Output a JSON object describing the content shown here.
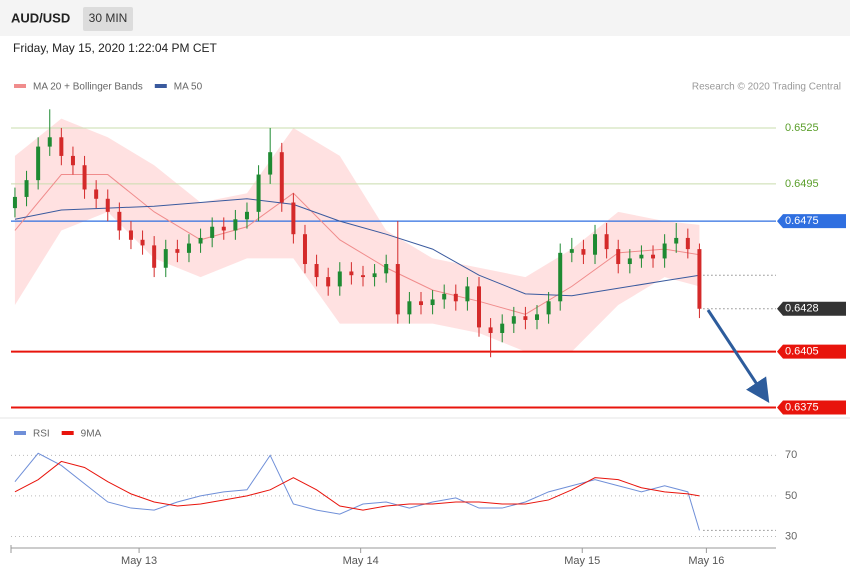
{
  "header": {
    "symbol": "AUD/USD",
    "interval": "30 MIN",
    "timestamp": "Friday, May 15, 2020 1:22:04 PM CET",
    "credit": "Research © 2020 Trading Central"
  },
  "chart_data": [
    {
      "type": "candlestick",
      "xlim": [
        -0.34,
        65.6
      ],
      "ylim": [
        0.6371,
        0.654
      ],
      "up_color": "#1e8a32",
      "down_color": "#d42a2a",
      "candles": {
        "open": [
          0.6482,
          0.6488,
          0.6497,
          0.6515,
          0.652,
          0.651,
          0.6505,
          0.6492,
          0.6487,
          0.648,
          0.647,
          0.6465,
          0.6462,
          0.645,
          0.646,
          0.6458,
          0.6463,
          0.6466,
          0.6472,
          0.647,
          0.6476,
          0.648,
          0.65,
          0.6512,
          0.6485,
          0.6468,
          0.6452,
          0.6445,
          0.644,
          0.6448,
          0.6446,
          0.6445,
          0.6447,
          0.6452,
          0.6425,
          0.6432,
          0.643,
          0.6433,
          0.6436,
          0.6432,
          0.644,
          0.6418,
          0.6415,
          0.642,
          0.6424,
          0.6422,
          0.6425,
          0.6432,
          0.6458,
          0.646,
          0.6457,
          0.6468,
          0.646,
          0.6452,
          0.6455,
          0.6457,
          0.6455,
          0.6463,
          0.6466,
          0.646
        ],
        "high": [
          0.6493,
          0.6502,
          0.652,
          0.6535,
          0.6525,
          0.6515,
          0.651,
          0.6497,
          0.6492,
          0.6485,
          0.6475,
          0.647,
          0.6467,
          0.6465,
          0.6465,
          0.6468,
          0.6471,
          0.6477,
          0.6477,
          0.6481,
          0.6485,
          0.6505,
          0.6525,
          0.6517,
          0.649,
          0.6473,
          0.6457,
          0.645,
          0.6453,
          0.6453,
          0.6451,
          0.6452,
          0.6457,
          0.6475,
          0.6437,
          0.6437,
          0.6438,
          0.6441,
          0.6441,
          0.6445,
          0.6445,
          0.6423,
          0.6425,
          0.6429,
          0.6429,
          0.643,
          0.6437,
          0.6463,
          0.6466,
          0.6465,
          0.6473,
          0.6474,
          0.6465,
          0.646,
          0.6462,
          0.6462,
          0.6468,
          0.6474,
          0.6471,
          0.6463
        ],
        "low": [
          0.6477,
          0.6483,
          0.6492,
          0.651,
          0.6505,
          0.65,
          0.6487,
          0.6482,
          0.6475,
          0.6465,
          0.646,
          0.6457,
          0.6445,
          0.6445,
          0.6453,
          0.6453,
          0.6458,
          0.6461,
          0.6465,
          0.6465,
          0.6471,
          0.6475,
          0.6495,
          0.648,
          0.6463,
          0.6447,
          0.644,
          0.6435,
          0.6435,
          0.6441,
          0.644,
          0.644,
          0.6442,
          0.642,
          0.642,
          0.6425,
          0.6425,
          0.6428,
          0.6427,
          0.6427,
          0.6413,
          0.6402,
          0.641,
          0.6415,
          0.6417,
          0.6417,
          0.642,
          0.6427,
          0.6453,
          0.6452,
          0.6452,
          0.6455,
          0.6447,
          0.6447,
          0.645,
          0.645,
          0.645,
          0.6458,
          0.6455,
          0.6423
        ],
        "close": [
          0.6488,
          0.6497,
          0.6515,
          0.652,
          0.651,
          0.6505,
          0.6492,
          0.6487,
          0.648,
          0.647,
          0.6465,
          0.6462,
          0.645,
          0.646,
          0.6458,
          0.6463,
          0.6466,
          0.6472,
          0.647,
          0.6476,
          0.648,
          0.65,
          0.6512,
          0.6485,
          0.6468,
          0.6452,
          0.6445,
          0.644,
          0.6448,
          0.6446,
          0.6445,
          0.6447,
          0.6452,
          0.6425,
          0.6432,
          0.643,
          0.6433,
          0.6436,
          0.6432,
          0.644,
          0.6418,
          0.6415,
          0.642,
          0.6424,
          0.6422,
          0.6425,
          0.6432,
          0.6458,
          0.646,
          0.6457,
          0.6468,
          0.646,
          0.6452,
          0.6455,
          0.6457,
          0.6455,
          0.6463,
          0.6466,
          0.646,
          0.6428
        ]
      },
      "indicator_x": [
        0,
        4,
        8,
        12,
        16,
        20,
        24,
        28,
        32,
        36,
        40,
        44,
        48,
        52,
        56,
        59
      ],
      "bands": {
        "color": "#ffdcdc",
        "upper": [
          0.651,
          0.653,
          0.652,
          0.6505,
          0.6485,
          0.649,
          0.6525,
          0.651,
          0.647,
          0.6455,
          0.645,
          0.6445,
          0.646,
          0.648,
          0.6475,
          0.6473
        ],
        "lower": [
          0.643,
          0.647,
          0.648,
          0.6455,
          0.6445,
          0.6455,
          0.6455,
          0.642,
          0.642,
          0.642,
          0.6415,
          0.6405,
          0.6405,
          0.643,
          0.6445,
          0.644
        ]
      },
      "series": [
        {
          "name": "MA 20 + Bollinger Bands",
          "color": "#f08c8c",
          "values": [
            0.647,
            0.65,
            0.65,
            0.648,
            0.6465,
            0.6472,
            0.649,
            0.6465,
            0.645,
            0.6438,
            0.6432,
            0.6425,
            0.644,
            0.6458,
            0.646,
            0.6457
          ]
        },
        {
          "name": "MA 50",
          "color": "#3a5a9e",
          "values": [
            0.6476,
            0.6481,
            0.6482,
            0.6483,
            0.6485,
            0.6487,
            0.6484,
            0.6475,
            0.6468,
            0.646,
            0.6446,
            0.6436,
            0.6435,
            0.6439,
            0.6443,
            0.6446
          ]
        }
      ],
      "levels": [
        {
          "value": 0.6525,
          "color": "#5a9e2a",
          "line_color": "#c9dcae",
          "style": "text"
        },
        {
          "value": 0.6495,
          "color": "#5a9e2a",
          "line_color": "#c9dcae",
          "style": "text"
        },
        {
          "value": 0.6475,
          "color": "#2f6fe0",
          "line_color": "#2f6fe0",
          "style": "tag"
        },
        {
          "value": 0.6428,
          "color": "#333333",
          "line_color": "none",
          "style": "tag"
        },
        {
          "value": 0.6405,
          "color": "#e8140c",
          "line_color": "#e8140c",
          "style": "tag"
        },
        {
          "value": 0.6375,
          "color": "#e8140c",
          "line_color": "#e8140c",
          "style": "tag"
        }
      ]
    },
    {
      "type": "line",
      "xlim": [
        -0.34,
        65.6
      ],
      "ylim": [
        24.3,
        75.1
      ],
      "yticks": [
        70,
        50,
        30
      ],
      "grid": true,
      "x": [
        0,
        2,
        4,
        6,
        8,
        10,
        12,
        14,
        16,
        18,
        20,
        22,
        24,
        26,
        28,
        30,
        32,
        34,
        36,
        38,
        40,
        42,
        44,
        46,
        48,
        50,
        52,
        54,
        56,
        58,
        59
      ],
      "series": [
        {
          "name": "RSI",
          "color": "#6f8fd8",
          "values": [
            57,
            71,
            65,
            56,
            47,
            44,
            43,
            47,
            50,
            52,
            53,
            70,
            46,
            43,
            41,
            46,
            47,
            44,
            47,
            49,
            44,
            44,
            47,
            52,
            55,
            58,
            55,
            52,
            55,
            52,
            33
          ]
        },
        {
          "name": "9MA",
          "color": "#e8140c",
          "values": [
            52,
            58,
            67,
            64,
            57,
            51,
            47,
            45,
            46,
            48,
            50,
            53,
            59,
            53,
            45,
            43,
            45,
            46,
            46,
            47,
            47,
            46,
            46,
            48,
            53,
            59,
            58,
            54,
            52,
            51,
            50
          ]
        }
      ],
      "xticks": [
        {
          "value": 10.7,
          "label": "May 13"
        },
        {
          "value": 29.8,
          "label": "May 14"
        },
        {
          "value": 48.9,
          "label": "May 15"
        },
        {
          "value": 59.6,
          "label": "May 16"
        }
      ]
    }
  ]
}
